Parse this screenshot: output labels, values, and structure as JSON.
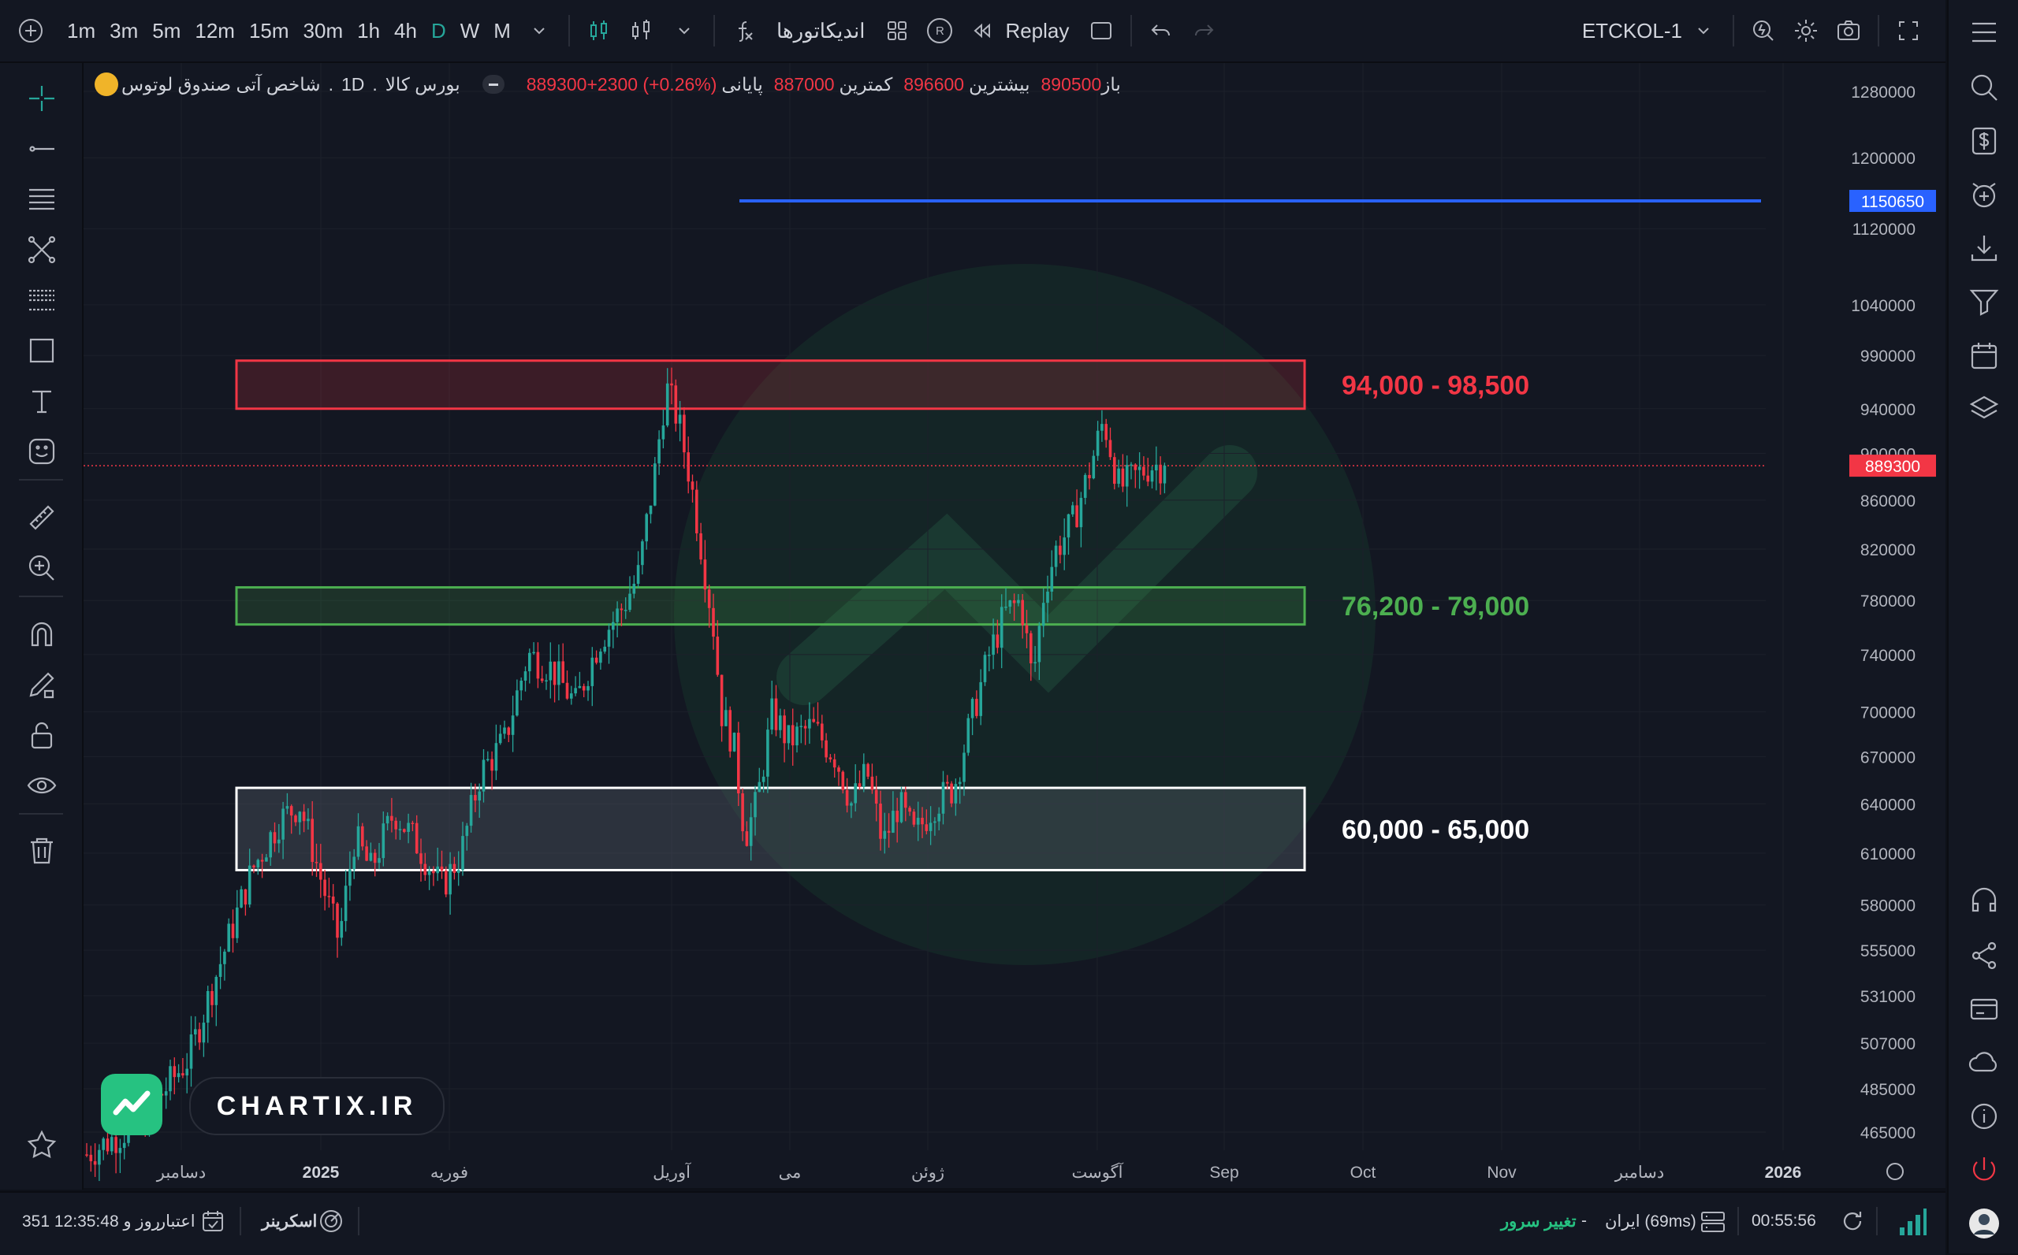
{
  "toolbar": {
    "timeframes": [
      "1m",
      "3m",
      "5m",
      "12m",
      "15m",
      "30m",
      "1h",
      "4h",
      "D",
      "W",
      "M"
    ],
    "active_timeframe": "D",
    "indicators_label": "اندیکاتورها",
    "replay_label": "Replay",
    "replay_badge": "R",
    "symbol": "ETCKOL-1"
  },
  "legend": {
    "title": "شاخص آتی صندوق لوتوس",
    "interval": "1D",
    "exchange": "بورس کالا",
    "open_label": "باز",
    "open_value": "890500",
    "high_label": "بیشترین",
    "high_value": "896600",
    "low_label": "کمترین",
    "low_value": "887000",
    "close_label": "پایانی",
    "close_value": "889300",
    "change_value": "+2300 (+0.26%)"
  },
  "price_axis": {
    "ticks": [
      "1280000",
      "1200000",
      "1120000",
      "1040000",
      "990000",
      "940000",
      "900000",
      "860000",
      "820000",
      "780000",
      "740000",
      "700000",
      "670000",
      "640000",
      "610000",
      "580000",
      "555000",
      "531000",
      "507000",
      "485000",
      "465000"
    ],
    "last_price": "889300",
    "hline_price": "1150650"
  },
  "time_axis": {
    "labels": [
      "دسامبر",
      "2025",
      "فوریه",
      "آوریل",
      "می",
      "ژوئن",
      "آگوست",
      "Sep",
      "Oct",
      "Nov",
      "دسامبر",
      "2026"
    ]
  },
  "zones": [
    {
      "label": "94,000 - 98,500",
      "color": "#f23645",
      "low": 940000,
      "high": 985000
    },
    {
      "label": "76,200 - 79,000",
      "color": "#4caf50",
      "low": 762000,
      "high": 790000
    },
    {
      "label": "60,000 - 65,000",
      "color": "#ffffff",
      "low": 600000,
      "high": 650000
    }
  ],
  "colors": {
    "up": "#26a69a",
    "down": "#f23645",
    "hline": "#2962ff",
    "bg": "#131722"
  },
  "brand": {
    "name": "CHARTIX.IR"
  },
  "bottom": {
    "time": "00:55:56",
    "server": "ایران (69ms)",
    "change_server": "تغییر سرور",
    "dash": "-",
    "scanner": "اسکرینر",
    "credit_label": "اعتبار",
    "credit_value": "351 روز و 12:35:48"
  },
  "chart_data": {
    "type": "candlestick",
    "series": [
      {
        "values": []
      }
    ]
  }
}
